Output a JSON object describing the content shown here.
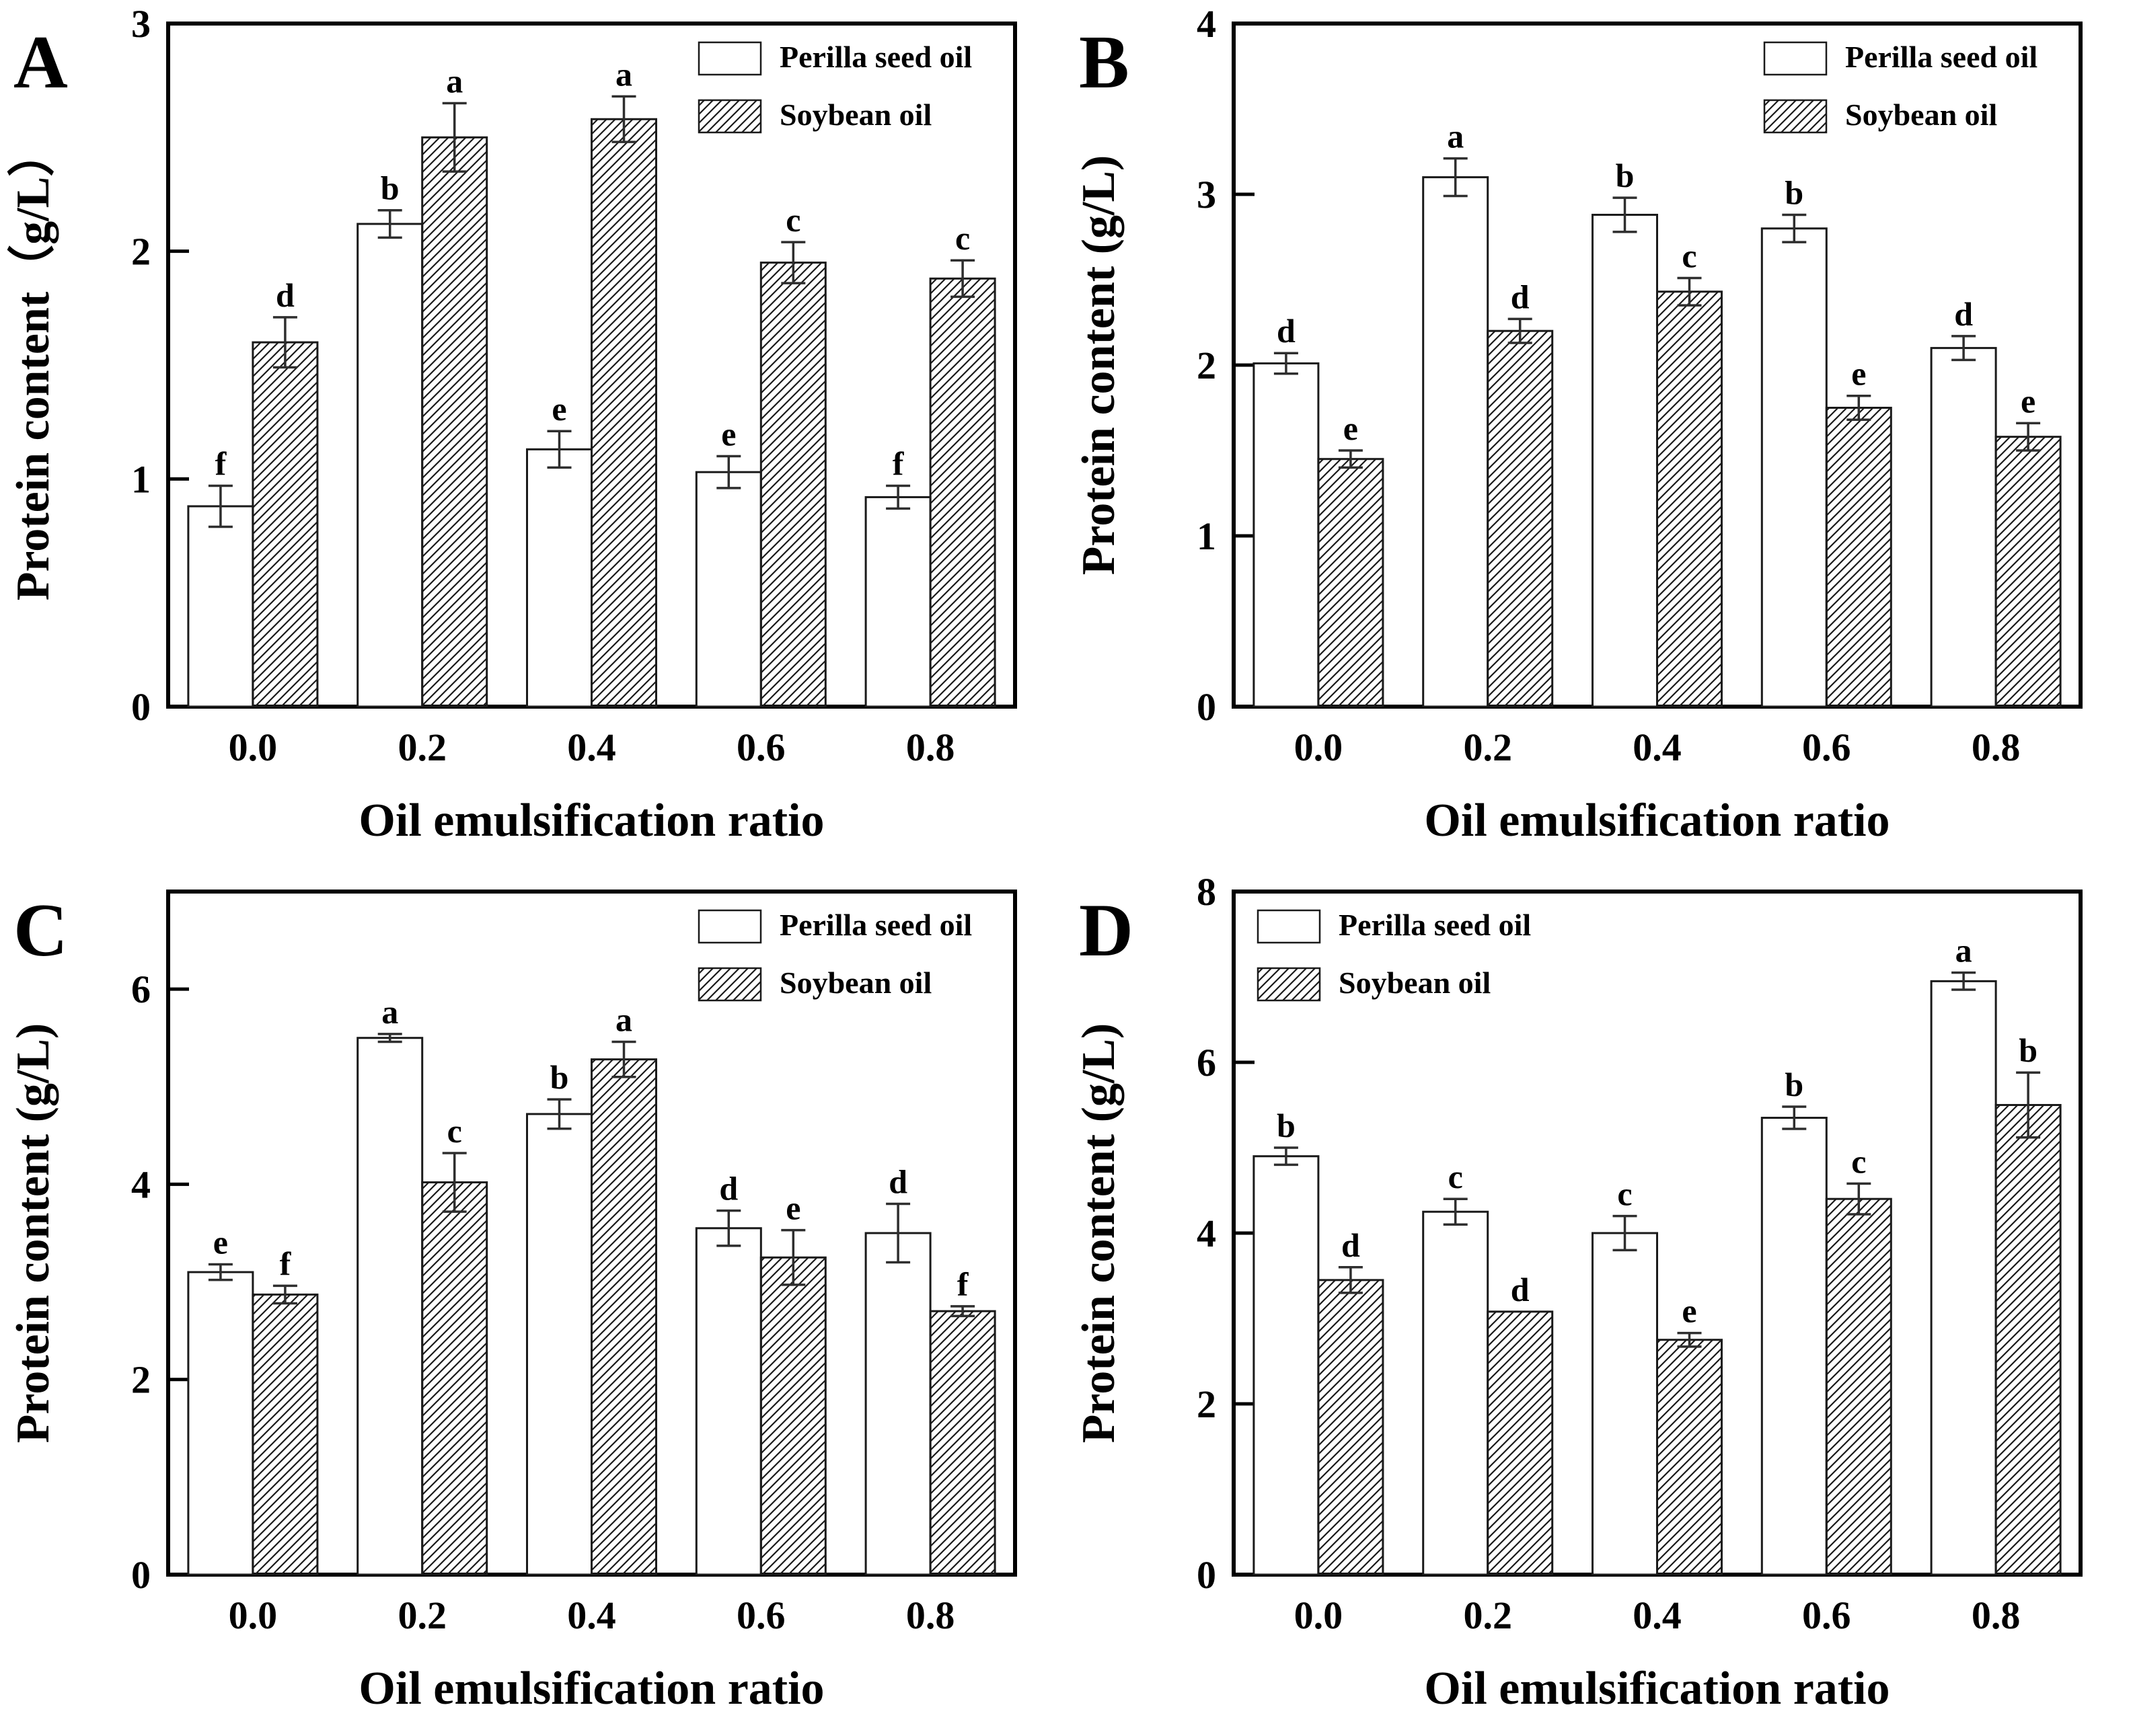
{
  "figure": {
    "background": "#ffffff",
    "ink_color": "#000000",
    "error_bar_color": "#2e2e2e",
    "bar_fill_white": "#ffffff",
    "hatch_style": "diagonal-forward-slash"
  },
  "chart_data": [
    {
      "type": "bar",
      "label": "A",
      "xlabel": "Oil emulsification ratio",
      "ylabel": "Protein content（g/L）",
      "ylim": [
        0,
        3
      ],
      "yticks": [
        "0",
        "1",
        "2",
        "3"
      ],
      "categories": [
        "0.0",
        "0.2",
        "0.4",
        "0.6",
        "0.8"
      ],
      "grid": "off",
      "legend_position": "top-right",
      "series": [
        {
          "name": "Perilla seed oil",
          "pattern": "solid-white",
          "values": [
            0.88,
            2.12,
            1.13,
            1.03,
            0.92
          ],
          "errors": [
            0.09,
            0.06,
            0.08,
            0.07,
            0.05
          ],
          "letters": [
            "f",
            "b",
            "e",
            "e",
            "f"
          ]
        },
        {
          "name": "Soybean oil",
          "pattern": "diagonal-hatch",
          "values": [
            1.6,
            2.5,
            2.58,
            1.95,
            1.88
          ],
          "errors": [
            0.11,
            0.15,
            0.1,
            0.09,
            0.08
          ],
          "letters": [
            "d",
            "a",
            "a",
            "c",
            "c"
          ]
        }
      ]
    },
    {
      "type": "bar",
      "label": "B",
      "xlabel": "Oil emulsification ratio",
      "ylabel": "Protein content (g/L)",
      "ylim": [
        0,
        4
      ],
      "yticks": [
        "0",
        "1",
        "2",
        "3",
        "4"
      ],
      "categories": [
        "0.0",
        "0.2",
        "0.4",
        "0.6",
        "0.8"
      ],
      "grid": "off",
      "legend_position": "top-right",
      "series": [
        {
          "name": "Perilla seed oil",
          "pattern": "solid-white",
          "values": [
            2.01,
            3.1,
            2.88,
            2.8,
            2.1
          ],
          "errors": [
            0.06,
            0.11,
            0.1,
            0.08,
            0.07
          ],
          "letters": [
            "d",
            "a",
            "b",
            "b",
            "d"
          ]
        },
        {
          "name": "Soybean oil",
          "pattern": "diagonal-hatch",
          "values": [
            1.45,
            2.2,
            2.43,
            1.75,
            1.58
          ],
          "errors": [
            0.05,
            0.07,
            0.08,
            0.07,
            0.08
          ],
          "letters": [
            "e",
            "d",
            "c",
            "e",
            "e"
          ]
        }
      ]
    },
    {
      "type": "bar",
      "label": "C",
      "xlabel": "Oil emulsification ratio",
      "ylabel": "Protein content (g/L)",
      "ylim": [
        0,
        7
      ],
      "yticks": [
        "0",
        "2",
        "4",
        "6"
      ],
      "categories": [
        "0.0",
        "0.2",
        "0.4",
        "0.6",
        "0.8"
      ],
      "grid": "off",
      "legend_position": "top-right",
      "series": [
        {
          "name": "Perilla seed oil",
          "pattern": "solid-white",
          "values": [
            3.1,
            5.5,
            4.72,
            3.55,
            3.5
          ],
          "errors": [
            0.08,
            0.04,
            0.15,
            0.18,
            0.3
          ],
          "letters": [
            "e",
            "a",
            "b",
            "d",
            "d"
          ]
        },
        {
          "name": "Soybean oil",
          "pattern": "diagonal-hatch",
          "values": [
            2.87,
            4.02,
            5.28,
            3.25,
            2.7
          ],
          "errors": [
            0.09,
            0.3,
            0.18,
            0.28,
            0.05
          ],
          "letters": [
            "f",
            "c",
            "a",
            "e",
            "f"
          ]
        }
      ]
    },
    {
      "type": "bar",
      "label": "D",
      "xlabel": "Oil emulsification ratio",
      "ylabel": "Protein content (g/L)",
      "ylim": [
        0,
        8
      ],
      "yticks": [
        "0",
        "2",
        "4",
        "6",
        "8"
      ],
      "categories": [
        "0.0",
        "0.2",
        "0.4",
        "0.6",
        "0.8"
      ],
      "grid": "off",
      "legend_position": "top-left",
      "series": [
        {
          "name": "Perilla seed oil",
          "pattern": "solid-white",
          "values": [
            4.9,
            4.25,
            4.0,
            5.35,
            6.95
          ],
          "errors": [
            0.1,
            0.15,
            0.2,
            0.13,
            0.1
          ],
          "letters": [
            "b",
            "c",
            "c",
            "b",
            "a"
          ]
        },
        {
          "name": "Soybean oil",
          "pattern": "diagonal-hatch",
          "values": [
            3.45,
            3.08,
            2.75,
            4.4,
            5.5
          ],
          "errors": [
            0.15,
            0.0,
            0.08,
            0.18,
            0.38
          ],
          "letters": [
            "d",
            "d",
            "e",
            "c",
            "b"
          ]
        }
      ]
    }
  ]
}
